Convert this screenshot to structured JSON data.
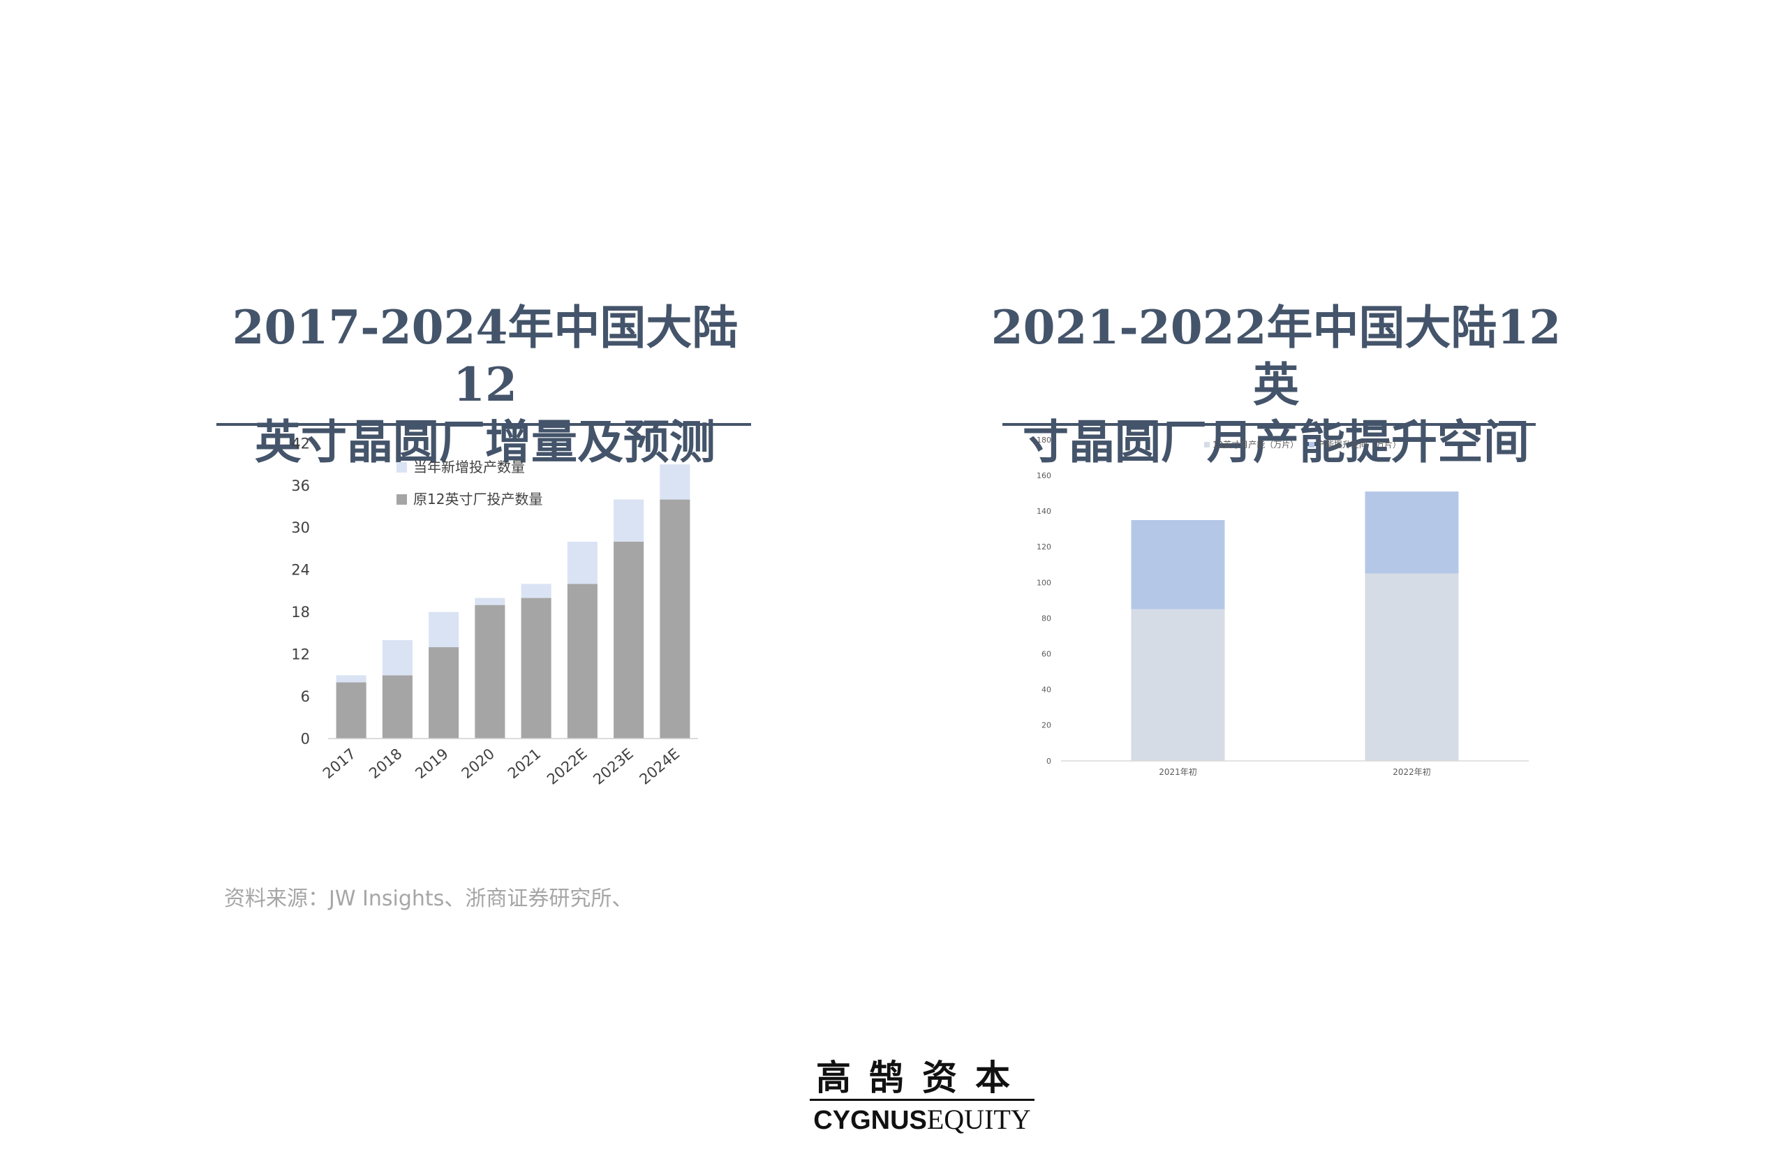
{
  "panels": [
    {
      "title_line1": "2017-2024年中国大陆12",
      "title_line2": "英寸晶圆厂增量及预测"
    },
    {
      "title_line1": "2021-2022年中国大陆12英",
      "title_line2": "寸晶圆厂月产能提升空间"
    }
  ],
  "source": "资料来源：JW Insights、浙商证券研究所、",
  "logo": {
    "cn": "高鹄资本",
    "en_bold": "CYGNUS",
    "en_serif": "EQUITY"
  },
  "colors": {
    "title": "#44546a",
    "gray_bar": "#a5a5a5",
    "light_blue_bar": "#dae3f3",
    "light_gray_bar": "#d6dce5",
    "blue_bar": "#b4c7e7"
  },
  "chart_data": [
    {
      "type": "bar",
      "stacked": true,
      "categories": [
        "2017",
        "2018",
        "2019",
        "2020",
        "2021",
        "2022E",
        "2023E",
        "2024E"
      ],
      "series": [
        {
          "name": "原12英寸厂投产数量",
          "values": [
            8,
            9,
            13,
            19,
            20,
            22,
            28,
            34
          ],
          "color": "#a5a5a5"
        },
        {
          "name": "当年新增投产数量",
          "values": [
            1,
            5,
            5,
            1,
            2,
            6,
            6,
            5
          ],
          "color": "#dae3f3"
        }
      ],
      "ylim": [
        0,
        42
      ],
      "yticks": [
        "0",
        "6",
        "12",
        "18",
        "24",
        "30",
        "36",
        "42"
      ],
      "legend": "top-left"
    },
    {
      "type": "bar",
      "stacked": true,
      "categories": [
        "2021年初",
        "2022年初"
      ],
      "series": [
        {
          "name": "12英寸月产能（万片）",
          "values": [
            85,
            105
          ],
          "color": "#d6dce5"
        },
        {
          "name": "产能提升空间（万片）",
          "values": [
            50,
            46
          ],
          "color": "#b4c7e7"
        }
      ],
      "ylim": [
        0,
        180
      ],
      "yticks": [
        "0",
        "20",
        "40",
        "60",
        "80",
        "100",
        "120",
        "140",
        "160",
        "180"
      ],
      "legend": "top"
    }
  ]
}
